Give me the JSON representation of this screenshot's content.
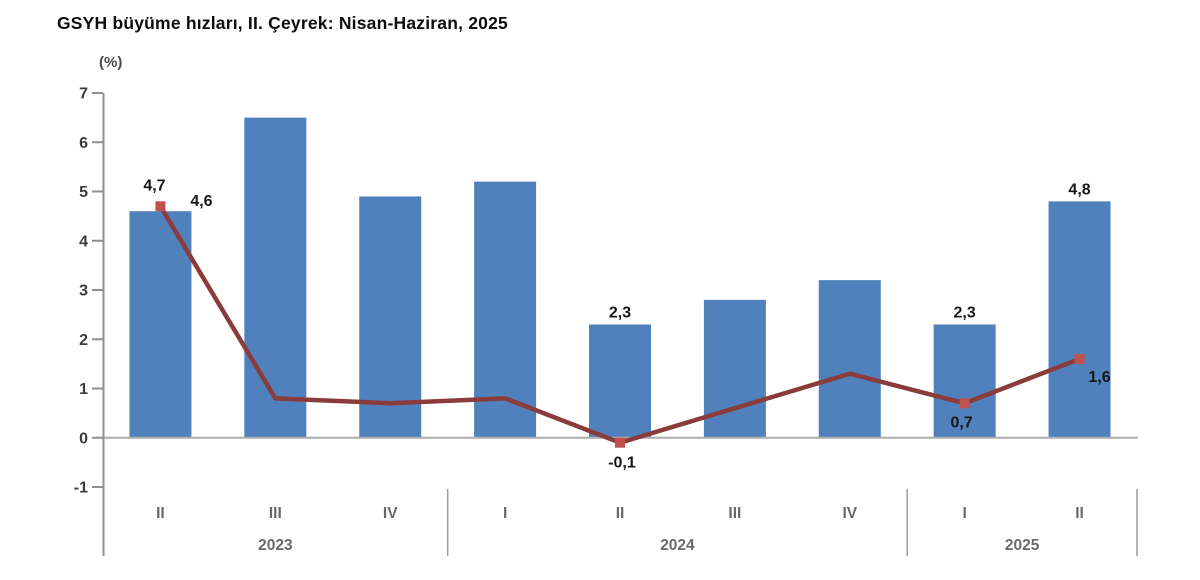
{
  "chart": {
    "title": "GSYH büyüme hızları, II. Çeyrek: Nisan-Haziran, 2025",
    "chart_data": {
      "type": "bar",
      "title": "GSYH büyüme hızları, II. Çeyrek: Nisan-Haziran, 2025",
      "ylabel": "(%)",
      "xlabel": "",
      "ylim": [
        -1,
        7
      ],
      "ytick_step": 1,
      "grid": false,
      "legend": "none",
      "yticks": [
        "7",
        "6",
        "5",
        "4",
        "3",
        "2",
        "1",
        "0",
        "-1"
      ],
      "categories": [
        "II",
        "III",
        "IV",
        "I",
        "II",
        "III",
        "IV",
        "I",
        "II"
      ],
      "year_groups": [
        {
          "label": "2023",
          "count": 3
        },
        {
          "label": "2024",
          "count": 4
        },
        {
          "label": "2025",
          "count": 2
        }
      ],
      "series": [
        {
          "type": "bar",
          "color": "#5081BD",
          "values": [
            4.6,
            6.5,
            4.9,
            5.2,
            2.3,
            2.8,
            3.2,
            2.3,
            4.8
          ],
          "point_labels": [
            {
              "i": 0,
              "text": "4,6",
              "pos": "above-right"
            },
            {
              "i": 4,
              "text": "2,3",
              "pos": "above"
            },
            {
              "i": 7,
              "text": "2,3",
              "pos": "above"
            },
            {
              "i": 8,
              "text": "4,8",
              "pos": "above"
            }
          ]
        },
        {
          "type": "line",
          "color": "#8A3B3B",
          "marker_color": "#C1514C",
          "values": [
            4.7,
            0.8,
            0.7,
            0.8,
            -0.1,
            0.6,
            1.3,
            0.7,
            1.6
          ],
          "marker_indices": [
            0,
            4,
            7,
            8
          ],
          "point_labels": [
            {
              "i": 0,
              "text": "4,7",
              "pos": "above-left"
            },
            {
              "i": 4,
              "text": "-0,1",
              "pos": "below"
            },
            {
              "i": 7,
              "text": "0,7",
              "pos": "below-left"
            },
            {
              "i": 8,
              "text": "1,6",
              "pos": "below-right"
            }
          ]
        }
      ],
      "colors": {
        "bar": "#5081BD",
        "line": "#8A3B3B",
        "marker": "#C1514C",
        "axis": "#8F8F8F",
        "baseline": "#ADADAD",
        "divider": "#9B9B9B",
        "tick_text": "#3C3C3C",
        "category_text": "#696969",
        "data_label_text": "#161616"
      }
    }
  }
}
